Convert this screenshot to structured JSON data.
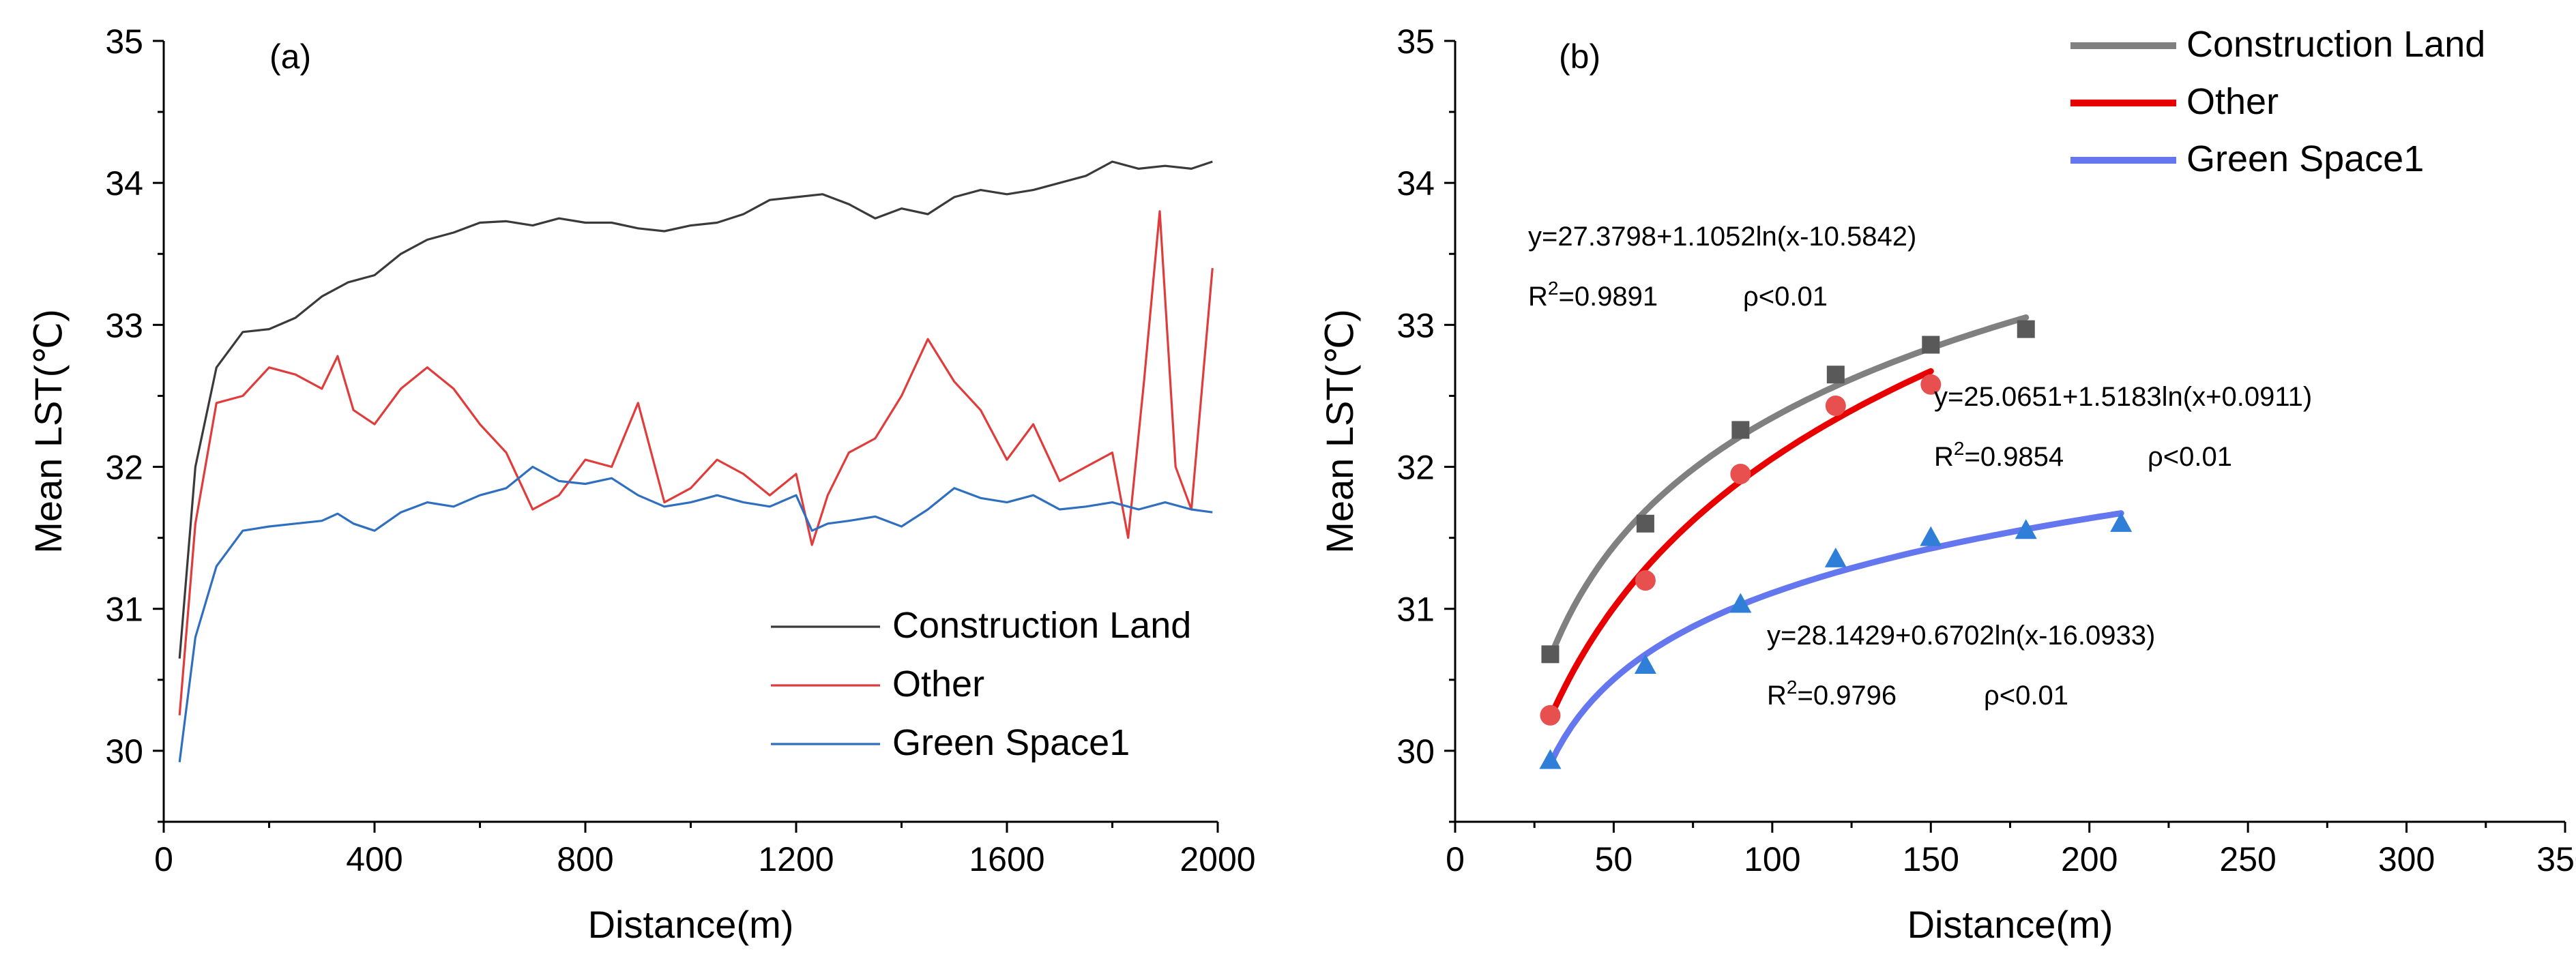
{
  "chart_data": [
    {
      "panel_label": "(a)",
      "type": "line",
      "xlabel": "Distance(m)",
      "ylabel": "Mean LST(℃)",
      "xlim": [
        0,
        2000
      ],
      "ylim": [
        29.5,
        35
      ],
      "xticks": [
        0,
        400,
        800,
        1200,
        1600,
        2000
      ],
      "yticks": [
        30,
        31,
        32,
        33,
        34,
        35
      ],
      "legend_position": "bottom-right",
      "grid": false,
      "series": [
        {
          "name": "Construction Land",
          "color": "#3a3a3a",
          "x": [
            30,
            60,
            100,
            150,
            200,
            250,
            300,
            350,
            400,
            450,
            500,
            550,
            600,
            650,
            700,
            750,
            800,
            850,
            900,
            950,
            1000,
            1050,
            1100,
            1150,
            1200,
            1250,
            1300,
            1350,
            1400,
            1450,
            1500,
            1550,
            1600,
            1650,
            1700,
            1750,
            1800,
            1850,
            1900,
            1950,
            1990
          ],
          "y": [
            30.65,
            32.0,
            32.7,
            32.95,
            32.97,
            33.05,
            33.2,
            33.3,
            33.35,
            33.5,
            33.6,
            33.65,
            33.72,
            33.73,
            33.7,
            33.75,
            33.72,
            33.72,
            33.68,
            33.66,
            33.7,
            33.72,
            33.78,
            33.88,
            33.9,
            33.92,
            33.85,
            33.75,
            33.82,
            33.78,
            33.9,
            33.95,
            33.92,
            33.95,
            34.0,
            34.05,
            34.15,
            34.1,
            34.12,
            34.1,
            34.15
          ]
        },
        {
          "name": "Other",
          "color": "#e03c3c",
          "x": [
            30,
            60,
            100,
            150,
            200,
            250,
            300,
            330,
            360,
            400,
            450,
            500,
            550,
            600,
            650,
            700,
            750,
            800,
            850,
            900,
            950,
            1000,
            1050,
            1100,
            1150,
            1200,
            1230,
            1260,
            1300,
            1350,
            1400,
            1450,
            1500,
            1550,
            1600,
            1650,
            1700,
            1750,
            1800,
            1830,
            1860,
            1890,
            1920,
            1950,
            1990
          ],
          "y": [
            30.25,
            31.6,
            32.45,
            32.5,
            32.7,
            32.65,
            32.55,
            32.78,
            32.4,
            32.3,
            32.55,
            32.7,
            32.55,
            32.3,
            32.1,
            31.7,
            31.8,
            32.05,
            32.0,
            32.45,
            31.75,
            31.85,
            32.05,
            31.95,
            31.8,
            31.95,
            31.45,
            31.8,
            32.1,
            32.2,
            32.5,
            32.9,
            32.6,
            32.4,
            32.05,
            32.3,
            31.9,
            32.0,
            32.1,
            31.5,
            32.6,
            33.8,
            32.0,
            31.7,
            33.4
          ]
        },
        {
          "name": "Green Space1",
          "color": "#2f6fbf",
          "x": [
            30,
            60,
            100,
            150,
            200,
            250,
            300,
            330,
            360,
            400,
            450,
            500,
            550,
            600,
            650,
            700,
            750,
            800,
            850,
            900,
            950,
            1000,
            1050,
            1100,
            1150,
            1200,
            1230,
            1260,
            1300,
            1350,
            1400,
            1450,
            1500,
            1550,
            1600,
            1650,
            1700,
            1750,
            1800,
            1850,
            1900,
            1950,
            1990
          ],
          "y": [
            29.92,
            30.8,
            31.3,
            31.55,
            31.58,
            31.6,
            31.62,
            31.67,
            31.6,
            31.55,
            31.68,
            31.75,
            31.72,
            31.8,
            31.85,
            32.0,
            31.9,
            31.88,
            31.92,
            31.8,
            31.72,
            31.75,
            31.8,
            31.75,
            31.72,
            31.8,
            31.55,
            31.6,
            31.62,
            31.65,
            31.58,
            31.7,
            31.85,
            31.78,
            31.75,
            31.8,
            31.7,
            31.72,
            31.75,
            31.7,
            31.75,
            31.7,
            31.68
          ]
        }
      ]
    },
    {
      "panel_label": "(b)",
      "type": "scatter",
      "xlabel": "Distance(m)",
      "ylabel": "Mean LST(℃)",
      "xlim": [
        0,
        350
      ],
      "ylim": [
        29.5,
        35
      ],
      "xticks": [
        0,
        50,
        100,
        150,
        200,
        250,
        300,
        350
      ],
      "yticks": [
        30,
        31,
        32,
        33,
        34,
        35
      ],
      "legend_position": "top-right",
      "grid": false,
      "series": [
        {
          "name": "Construction Land",
          "color": "#808080",
          "point_color": "#595959",
          "marker": "square",
          "x": [
            30,
            60,
            90,
            120,
            150,
            180
          ],
          "y": [
            30.68,
            31.6,
            32.26,
            32.65,
            32.86,
            32.97
          ],
          "fit": {
            "a": 27.3798,
            "b": 1.1052,
            "c": -10.5842,
            "x_range": [
              30,
              180
            ]
          },
          "equation": "y=27.3798+1.1052ln(x-10.5842)",
          "r2_label": "R",
          "r2_sup": "2",
          "r2_value": "=0.9891",
          "p_label": "ρ<0.01"
        },
        {
          "name": "Other",
          "color": "#e80000",
          "point_color": "#e85050",
          "marker": "circle",
          "x": [
            30,
            60,
            90,
            120,
            150
          ],
          "y": [
            30.25,
            31.2,
            31.95,
            32.43,
            32.58
          ],
          "fit": {
            "a": 25.0651,
            "b": 1.5183,
            "c": 0.0911,
            "x_range": [
              30,
              150
            ]
          },
          "equation": "y=25.0651+1.5183ln(x+0.0911)",
          "r2_label": "R",
          "r2_sup": "2",
          "r2_value": "=0.9854",
          "p_label": "ρ<0.01"
        },
        {
          "name": "Green Space1",
          "color": "#6477ee",
          "point_color": "#2f7fd8",
          "marker": "triangle",
          "x": [
            30,
            60,
            90,
            120,
            150,
            180,
            210
          ],
          "y": [
            29.93,
            30.6,
            31.03,
            31.35,
            31.5,
            31.55,
            31.6
          ],
          "fit": {
            "a": 28.1429,
            "b": 0.6702,
            "c": -16.0933,
            "x_range": [
              30,
              210
            ]
          },
          "equation": "y=28.1429+0.6702ln(x-16.0933)",
          "r2_label": "R",
          "r2_sup": "2",
          "r2_value": "=0.9796",
          "p_label": "ρ<0.01"
        }
      ]
    }
  ]
}
